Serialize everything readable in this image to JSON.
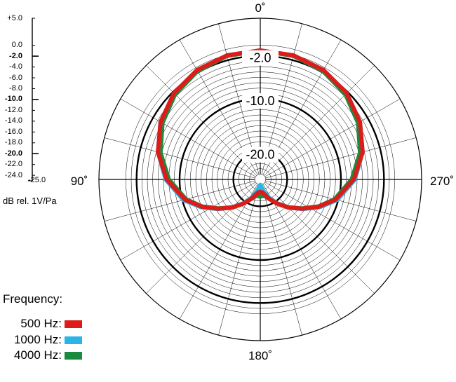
{
  "chart_data": {
    "type": "polar",
    "angle_labels": [
      "0˚",
      "90˚",
      "180˚",
      "270˚"
    ],
    "ring_labels": [
      "-2.0",
      "-10.0",
      "-20.0"
    ],
    "scale": {
      "ticks": [
        {
          "text": "+5.0",
          "value": 5.0,
          "bold": false
        },
        {
          "text": "0.0",
          "value": 0.0,
          "bold": false
        },
        {
          "text": "-2.0",
          "value": -2.0,
          "bold": true
        },
        {
          "text": "-4.0",
          "value": -4.0,
          "bold": false
        },
        {
          "text": "-6.0",
          "value": -6.0,
          "bold": false
        },
        {
          "text": "-8.0",
          "value": -8.0,
          "bold": false
        },
        {
          "text": "-10.0",
          "value": -10.0,
          "bold": true
        },
        {
          "text": "-12.0",
          "value": -12.0,
          "bold": false
        },
        {
          "text": "-14.0",
          "value": -14.0,
          "bold": false
        },
        {
          "text": "-16.0",
          "value": -16.0,
          "bold": false
        },
        {
          "text": "-18.0",
          "value": -18.0,
          "bold": false
        },
        {
          "text": "-20.0",
          "value": -20.0,
          "bold": true
        },
        {
          "text": "-22.0",
          "value": -22.0,
          "bold": false
        },
        {
          "text": "-24.0",
          "value": -24.0,
          "bold": false
        }
      ],
      "bottom_label": "-25.0",
      "unit": "dB rel. 1V/Pa",
      "range": [
        -25,
        5
      ]
    },
    "legend_title": "Frequency:",
    "series": [
      {
        "name": "500 Hz:",
        "color": "#dd1c1a",
        "points": [
          [
            0,
            -1.0
          ],
          [
            15,
            -1.1
          ],
          [
            30,
            -1.5
          ],
          [
            45,
            -2.3
          ],
          [
            60,
            -3.6
          ],
          [
            75,
            -5.3
          ],
          [
            90,
            -7.6
          ],
          [
            105,
            -10.5
          ],
          [
            115,
            -13.0
          ],
          [
            125,
            -15.5
          ],
          [
            135,
            -17.6
          ],
          [
            145,
            -19.5
          ],
          [
            155,
            -21.0
          ],
          [
            165,
            -22.2
          ],
          [
            172,
            -22.6
          ],
          [
            180,
            -22.6
          ],
          [
            188,
            -22.6
          ],
          [
            195,
            -22.2
          ],
          [
            205,
            -21.0
          ],
          [
            215,
            -19.5
          ],
          [
            225,
            -17.6
          ],
          [
            235,
            -15.5
          ],
          [
            245,
            -13.0
          ],
          [
            255,
            -10.5
          ],
          [
            270,
            -7.6
          ],
          [
            285,
            -5.3
          ],
          [
            300,
            -3.6
          ],
          [
            315,
            -2.3
          ],
          [
            330,
            -1.5
          ],
          [
            345,
            -1.1
          ],
          [
            360,
            -1.0
          ]
        ]
      },
      {
        "name": "1000 Hz:",
        "color": "#2bb4e6",
        "points": [
          [
            0,
            -1.0
          ],
          [
            15,
            -1.1
          ],
          [
            30,
            -1.5
          ],
          [
            45,
            -2.3
          ],
          [
            60,
            -3.6
          ],
          [
            75,
            -5.3
          ],
          [
            90,
            -7.4
          ],
          [
            105,
            -10.2
          ],
          [
            115,
            -12.8
          ],
          [
            125,
            -15.4
          ],
          [
            135,
            -17.6
          ],
          [
            145,
            -19.6
          ],
          [
            155,
            -21.3
          ],
          [
            165,
            -22.8
          ],
          [
            172,
            -23.6
          ],
          [
            180,
            -24.0
          ],
          [
            188,
            -23.6
          ],
          [
            195,
            -22.8
          ],
          [
            205,
            -21.3
          ],
          [
            215,
            -19.6
          ],
          [
            225,
            -17.6
          ],
          [
            235,
            -15.4
          ],
          [
            245,
            -12.8
          ],
          [
            255,
            -10.2
          ],
          [
            270,
            -7.4
          ],
          [
            285,
            -5.3
          ],
          [
            300,
            -3.6
          ],
          [
            315,
            -2.3
          ],
          [
            330,
            -1.5
          ],
          [
            345,
            -1.1
          ],
          [
            360,
            -1.0
          ]
        ]
      },
      {
        "name": "4000 Hz:",
        "color": "#1a8a3c",
        "points": [
          [
            0,
            -1.0
          ],
          [
            15,
            -1.2
          ],
          [
            30,
            -1.7
          ],
          [
            45,
            -2.6
          ],
          [
            60,
            -4.0
          ],
          [
            75,
            -5.8
          ],
          [
            90,
            -8.0
          ],
          [
            105,
            -10.7
          ],
          [
            115,
            -13.1
          ],
          [
            125,
            -15.6
          ],
          [
            135,
            -17.7
          ],
          [
            145,
            -19.6
          ],
          [
            155,
            -21.0
          ],
          [
            165,
            -21.8
          ],
          [
            172,
            -21.9
          ],
          [
            180,
            -21.8
          ],
          [
            188,
            -21.9
          ],
          [
            195,
            -21.8
          ],
          [
            205,
            -21.0
          ],
          [
            215,
            -19.6
          ],
          [
            225,
            -17.7
          ],
          [
            235,
            -15.6
          ],
          [
            245,
            -13.1
          ],
          [
            255,
            -10.7
          ],
          [
            270,
            -8.0
          ],
          [
            285,
            -5.8
          ],
          [
            300,
            -4.0
          ],
          [
            315,
            -2.6
          ],
          [
            330,
            -1.7
          ],
          [
            345,
            -1.2
          ],
          [
            360,
            -1.0
          ]
        ]
      }
    ]
  }
}
